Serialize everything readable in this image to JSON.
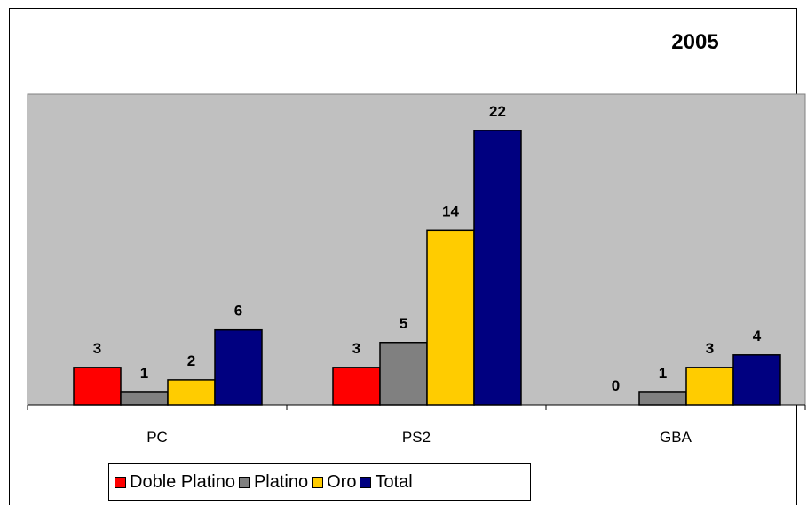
{
  "chart_data": {
    "type": "bar",
    "title": "2005",
    "categories": [
      "PC",
      "PS2",
      "GBA"
    ],
    "series": [
      {
        "name": "Doble Platino",
        "values": [
          3,
          3,
          0
        ],
        "color": "#ff0000"
      },
      {
        "name": "Platino",
        "values": [
          1,
          5,
          1
        ],
        "color": "#808080"
      },
      {
        "name": "Oro",
        "values": [
          2,
          14,
          3
        ],
        "color": "#ffcc00"
      },
      {
        "name": "Total",
        "values": [
          6,
          22,
          4
        ],
        "color": "#000080"
      }
    ],
    "ylim": [
      0,
      22
    ],
    "grid": false,
    "legend_position": "bottom-left",
    "plot_background": "#c0c0c0"
  }
}
